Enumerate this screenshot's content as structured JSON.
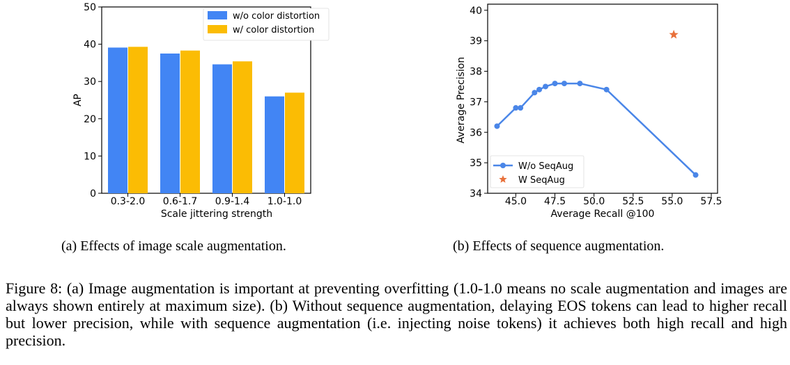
{
  "chart_data": [
    {
      "type": "bar",
      "title": "",
      "xlabel": "Scale jittering strength",
      "ylabel": "AP",
      "categories": [
        "0.3-2.0",
        "0.6-1.7",
        "0.9-1.4",
        "1.0-1.0"
      ],
      "series": [
        {
          "name": "w/o color distortion",
          "color": "#4285f4",
          "values": [
            39.1,
            37.5,
            34.6,
            26.0
          ]
        },
        {
          "name": "w/ color distortion",
          "color": "#fbbc04",
          "values": [
            39.3,
            38.3,
            35.4,
            27.0
          ]
        }
      ],
      "ylim": [
        0,
        50
      ],
      "yticks": [
        0,
        10,
        20,
        30,
        40,
        50
      ],
      "legend_position": "top-right",
      "grid": false
    },
    {
      "type": "scatter",
      "title": "",
      "xlabel": "Average Recall @100",
      "ylabel": "Average Precision",
      "xlim": [
        43.2,
        57.9
      ],
      "ylim": [
        34,
        40.2
      ],
      "xticks": [
        "45.0",
        "47.5",
        "50.0",
        "52.5",
        "55.0",
        "57.5"
      ],
      "yticks": [
        "34",
        "35",
        "36",
        "37",
        "38",
        "39",
        "40"
      ],
      "series": [
        {
          "name": "W/o SeqAug",
          "style": "line-marker",
          "color": "#4a86e8",
          "x": [
            43.8,
            45.0,
            45.3,
            46.2,
            46.5,
            46.9,
            47.5,
            48.1,
            49.1,
            50.8,
            56.5
          ],
          "y": [
            36.2,
            36.8,
            36.8,
            37.3,
            37.4,
            37.5,
            37.6,
            37.6,
            37.6,
            37.4,
            34.6
          ]
        },
        {
          "name": "W SeqAug",
          "style": "star",
          "color": "#e8703a",
          "x": [
            55.1
          ],
          "y": [
            39.2
          ]
        }
      ],
      "legend_position": "bottom-left",
      "grid": false
    }
  ],
  "captions": {
    "a": "(a) Effects of image scale augmentation.",
    "b": "(b)  Effects of sequence augmentation.",
    "figure": "Figure 8:  (a) Image augmentation is important at preventing overfitting (1.0-1.0 means no scale augmentation and images are always shown entirely at maximum size).  (b) Without sequence augmentation, delaying EOS tokens can lead to higher recall but lower precision, while with sequence augmentation (i.e. injecting noise tokens) it achieves both high recall and high precision."
  }
}
